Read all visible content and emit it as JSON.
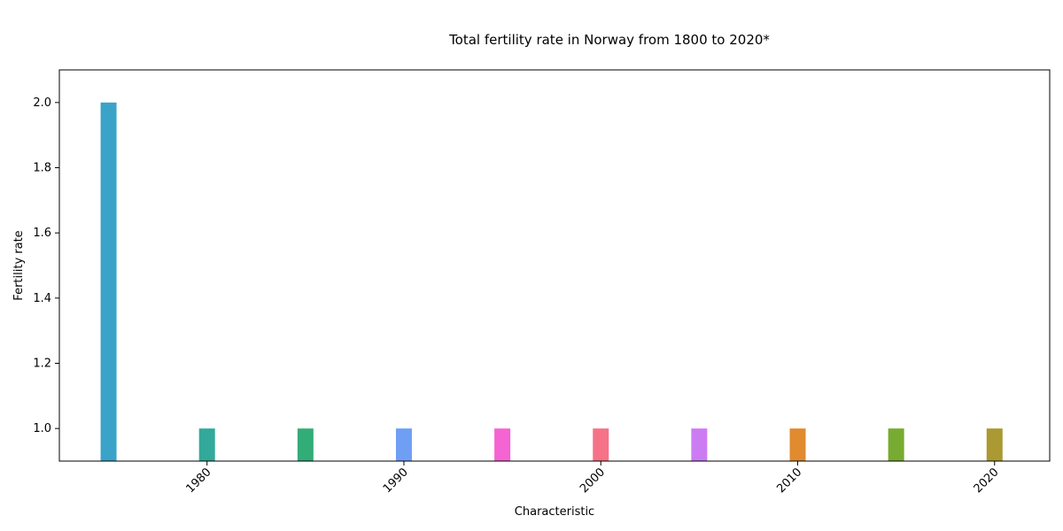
{
  "chart_data": {
    "type": "bar",
    "title": "Total fertility rate in Norway from 1800 to 2020*",
    "xlabel": "Characteristic",
    "ylabel": "Fertility rate",
    "x": [
      1975,
      1980,
      1985,
      1990,
      1995,
      2000,
      2005,
      2010,
      2015,
      2020
    ],
    "values": [
      2.0,
      1.0,
      1.0,
      1.0,
      1.0,
      1.0,
      1.0,
      1.0,
      1.0,
      1.0
    ],
    "colors": [
      "#3ba3c8",
      "#32a99a",
      "#32ad78",
      "#6f9ef5",
      "#f464d2",
      "#f57287",
      "#cb7cf2",
      "#e08b2f",
      "#77ab31",
      "#ab9932"
    ],
    "xlim": [
      1972.5,
      2022.8
    ],
    "ylim": [
      0.9,
      2.1
    ],
    "xticks": [
      1980,
      1990,
      2000,
      2010,
      2020
    ],
    "yticks": [
      1.0,
      1.2,
      1.4,
      1.6,
      1.8,
      2.0
    ],
    "ytick_labels": [
      "1.0",
      "1.2",
      "1.4",
      "1.6",
      "1.8",
      "2.0"
    ],
    "grid": false,
    "legend": "none"
  }
}
